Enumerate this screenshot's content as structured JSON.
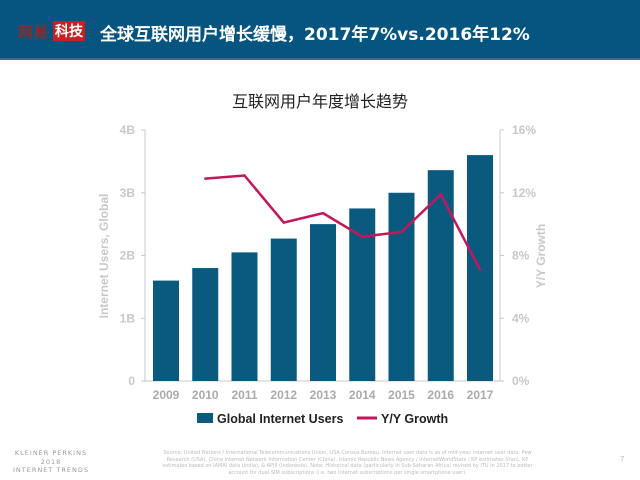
{
  "header": {
    "logo_part1": "网易",
    "logo_part2": "科技",
    "title": "全球互联网用户增长缓慢，2017年7%vs.2016年12%"
  },
  "chart_data": {
    "type": "bar+line",
    "title": "互联网用户年度增长趋势",
    "categories": [
      "2009",
      "2010",
      "2011",
      "2012",
      "2013",
      "2014",
      "2015",
      "2016",
      "2017"
    ],
    "series": [
      {
        "name": "Global Internet Users",
        "type": "bar",
        "axis": "left",
        "unit": "B",
        "values": [
          1.6,
          1.8,
          2.05,
          2.27,
          2.5,
          2.75,
          3.0,
          3.36,
          3.6
        ],
        "color": "#0a5a80"
      },
      {
        "name": "Y/Y Growth",
        "type": "line",
        "axis": "right",
        "unit": "%",
        "values": [
          null,
          12.9,
          13.1,
          10.1,
          10.7,
          9.2,
          9.5,
          11.9,
          7.1
        ],
        "color": "#c2185b"
      }
    ],
    "ylabel": "Internet Users, Global",
    "y2label": "Y/Y Growth",
    "ylim": [
      0,
      4
    ],
    "y2lim": [
      0,
      16
    ],
    "yticks": [
      "0",
      "1B",
      "2B",
      "3B",
      "4B"
    ],
    "y2ticks": [
      "0%",
      "4%",
      "8%",
      "12%",
      "16%"
    ],
    "grid": false,
    "legend": "bottom"
  },
  "footer": {
    "brand": [
      "KLEINER PERKINS",
      "2018",
      "INTERNET TRENDS"
    ],
    "source": "Source: United Nations / International Telecommunications Union, USA Census Bureau. Internet user data is as of mid-year. Internet user data: Pew Research (USA), China Internet Network Information Center (China), Islamic Republic News Agency / InternetWorldStats / KP estimates (Iran), KP estimates based on IAMAI data (India), & APJII (Indonesia). Note: Historical data (particularly in Sub-Saharan Africa) revised by ITU in 2017 to better account for dual-SIM subscriptions (i.e. two Internet subscriptions per single smartphone user).",
    "page": "7"
  }
}
